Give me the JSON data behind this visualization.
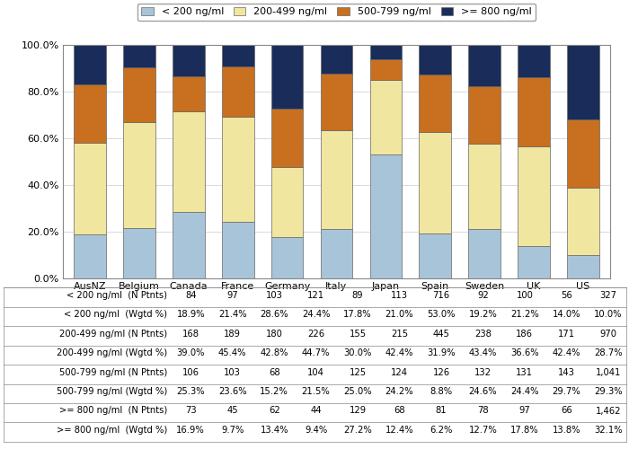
{
  "countries": [
    "AusNZ",
    "Belgium",
    "Canada",
    "France",
    "Germany",
    "Italy",
    "Japan",
    "Spain",
    "Sweden",
    "UK",
    "US"
  ],
  "categories": [
    "< 200 ng/ml",
    "200-499 ng/ml",
    "500-799 ng/ml",
    ">= 800 ng/ml"
  ],
  "values": {
    "< 200 ng/ml": [
      18.9,
      21.4,
      28.6,
      24.4,
      17.8,
      21.0,
      53.0,
      19.2,
      21.2,
      14.0,
      10.0
    ],
    "200-499 ng/ml": [
      39.0,
      45.4,
      42.8,
      44.7,
      30.0,
      42.4,
      31.9,
      43.4,
      36.6,
      42.4,
      28.7
    ],
    "500-799 ng/ml": [
      25.3,
      23.6,
      15.2,
      21.5,
      25.0,
      24.2,
      8.8,
      24.6,
      24.4,
      29.7,
      29.3
    ],
    ">= 800 ng/ml": [
      16.9,
      9.7,
      13.4,
      9.4,
      27.2,
      12.4,
      6.2,
      12.7,
      17.8,
      13.8,
      32.1
    ]
  },
  "colors": [
    "#a8c4d8",
    "#f0e6a0",
    "#c87020",
    "#1a2d5a"
  ],
  "legend_labels": [
    "< 200 ng/ml",
    "200-499 ng/ml",
    "500-799 ng/ml",
    ">= 800 ng/ml"
  ],
  "table_rows": [
    [
      "< 200 ng/ml  (N Ptnts)",
      "84",
      "97",
      "103",
      "121",
      "89",
      "113",
      "716",
      "92",
      "100",
      "56",
      "327"
    ],
    [
      "< 200 ng/ml  (Wgtd %)",
      "18.9%",
      "21.4%",
      "28.6%",
      "24.4%",
      "17.8%",
      "21.0%",
      "53.0%",
      "19.2%",
      "21.2%",
      "14.0%",
      "10.0%"
    ],
    [
      "200-499 ng/ml (N Ptnts)",
      "168",
      "189",
      "180",
      "226",
      "155",
      "215",
      "445",
      "238",
      "186",
      "171",
      "970"
    ],
    [
      "200-499 ng/ml (Wgtd %)",
      "39.0%",
      "45.4%",
      "42.8%",
      "44.7%",
      "30.0%",
      "42.4%",
      "31.9%",
      "43.4%",
      "36.6%",
      "42.4%",
      "28.7%"
    ],
    [
      "500-799 ng/ml (N Ptnts)",
      "106",
      "103",
      "68",
      "104",
      "125",
      "124",
      "126",
      "132",
      "131",
      "143",
      "1,041"
    ],
    [
      "500-799 ng/ml (Wgtd %)",
      "25.3%",
      "23.6%",
      "15.2%",
      "21.5%",
      "25.0%",
      "24.2%",
      "8.8%",
      "24.6%",
      "24.4%",
      "29.7%",
      "29.3%"
    ],
    [
      ">= 800 ng/ml  (N Ptnts)",
      "73",
      "45",
      "62",
      "44",
      "129",
      "68",
      "81",
      "78",
      "97",
      "66",
      "1,462"
    ],
    [
      ">= 800 ng/ml  (Wgtd %)",
      "16.9%",
      "9.7%",
      "13.4%",
      "9.4%",
      "27.2%",
      "12.4%",
      "6.2%",
      "12.7%",
      "17.8%",
      "13.8%",
      "32.1%"
    ]
  ],
  "ylim": [
    0,
    100
  ],
  "yticks": [
    0,
    20,
    40,
    60,
    80,
    100
  ],
  "ytick_labels": [
    "0.0%",
    "20.0%",
    "40.0%",
    "60.0%",
    "80.0%",
    "100.0%"
  ],
  "bar_width": 0.65,
  "figure_bg": "#ffffff",
  "axes_bg": "#ffffff",
  "border_color": "#888888"
}
